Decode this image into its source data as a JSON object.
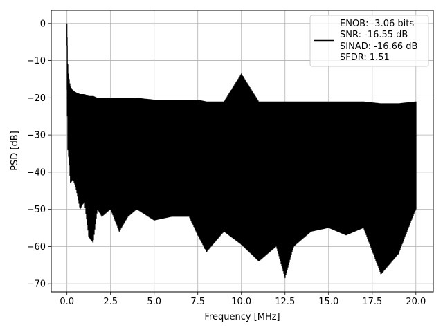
{
  "chart_data": {
    "type": "line",
    "title": "",
    "xlabel": "Frequency [MHz]",
    "ylabel": "PSD [dB]",
    "xlim": [
      -0.9,
      21.0
    ],
    "ylim": [
      -72.2,
      3.5
    ],
    "xticks": [
      0.0,
      2.5,
      5.0,
      7.5,
      10.0,
      12.5,
      15.0,
      17.5,
      20.0
    ],
    "xtick_labels": [
      "0.0",
      "2.5",
      "5.0",
      "7.5",
      "10.0",
      "12.5",
      "15.0",
      "17.5",
      "20.0"
    ],
    "yticks": [
      0,
      -10,
      -20,
      -30,
      -40,
      -50,
      -60,
      -70
    ],
    "ytick_labels": [
      "0",
      "−10",
      "−20",
      "−30",
      "−40",
      "−50",
      "−60",
      "−70"
    ],
    "grid": true,
    "legend_position": "top-right",
    "legend_lines": [
      "ENOB: -3.06 bits",
      "SNR: -16.55 dB",
      "SINAD: -16.66 dB",
      "SFDR: 1.51"
    ],
    "series": [
      {
        "color": "#000000",
        "x": [
          0.0,
          0.02,
          0.05,
          0.1,
          0.2,
          0.35,
          0.5,
          0.75,
          1.0,
          1.25,
          1.5,
          1.75,
          2.0,
          2.5,
          3.0,
          3.5,
          4.0,
          5.0,
          6.0,
          7.0,
          7.5,
          8.0,
          9.0,
          10.0,
          11.0,
          12.0,
          12.5,
          13.0,
          14.0,
          15.0,
          16.0,
          17.0,
          18.0,
          19.0,
          20.0
        ],
        "upper": [
          0.0,
          -6.0,
          -11.0,
          -14.0,
          -17.0,
          -18.0,
          -18.5,
          -19.0,
          -19.0,
          -19.5,
          -19.5,
          -20.0,
          -20.0,
          -20.0,
          -20.0,
          -20.0,
          -20.0,
          -20.5,
          -20.5,
          -20.5,
          -20.5,
          -21.0,
          -21.0,
          -13.5,
          -21.0,
          -21.0,
          -21.0,
          -21.0,
          -21.0,
          -21.0,
          -21.0,
          -21.0,
          -21.5,
          -21.5,
          -21.0
        ],
        "lower": [
          -6.0,
          -25.0,
          -34.0,
          -36.0,
          -43.0,
          -42.0,
          -44.0,
          -50.0,
          -48.0,
          -57.5,
          -59.0,
          -50.0,
          -52.0,
          -50.0,
          -56.0,
          -52.0,
          -50.0,
          -53.0,
          -52.0,
          -52.0,
          -57.0,
          -61.5,
          -56.0,
          -59.5,
          -64.0,
          -60.0,
          -68.5,
          -60.0,
          -56.0,
          -55.0,
          -57.0,
          -55.0,
          -67.5,
          -62.0,
          -50.0
        ],
        "body_top": [
          0.0,
          -10.0,
          -14.0,
          -17.0,
          -22.0,
          -24.0,
          -25.0,
          -25.0,
          -25.0,
          -25.0,
          -25.0,
          -25.0,
          -25.0,
          -25.0,
          -25.0,
          -25.0,
          -25.0,
          -25.0,
          -25.0,
          -25.0,
          -25.0,
          -25.0,
          -25.0,
          -25.0,
          -25.0,
          -25.0,
          -25.0,
          -25.0,
          -25.0,
          -25.0,
          -25.0,
          -25.0,
          -25.0,
          -25.0,
          -25.0
        ],
        "body_bottom": [
          -6.0,
          -20.0,
          -28.0,
          -32.0,
          -38.0,
          -38.0,
          -39.0,
          -40.0,
          -40.0,
          -40.0,
          -40.0,
          -40.0,
          -40.0,
          -40.0,
          -40.0,
          -40.0,
          -40.0,
          -40.0,
          -40.0,
          -40.0,
          -40.0,
          -40.0,
          -40.0,
          -40.0,
          -40.0,
          -40.0,
          -40.0,
          -40.0,
          -40.0,
          -40.0,
          -40.0,
          -40.0,
          -40.0,
          -40.0,
          -40.0
        ]
      }
    ]
  }
}
